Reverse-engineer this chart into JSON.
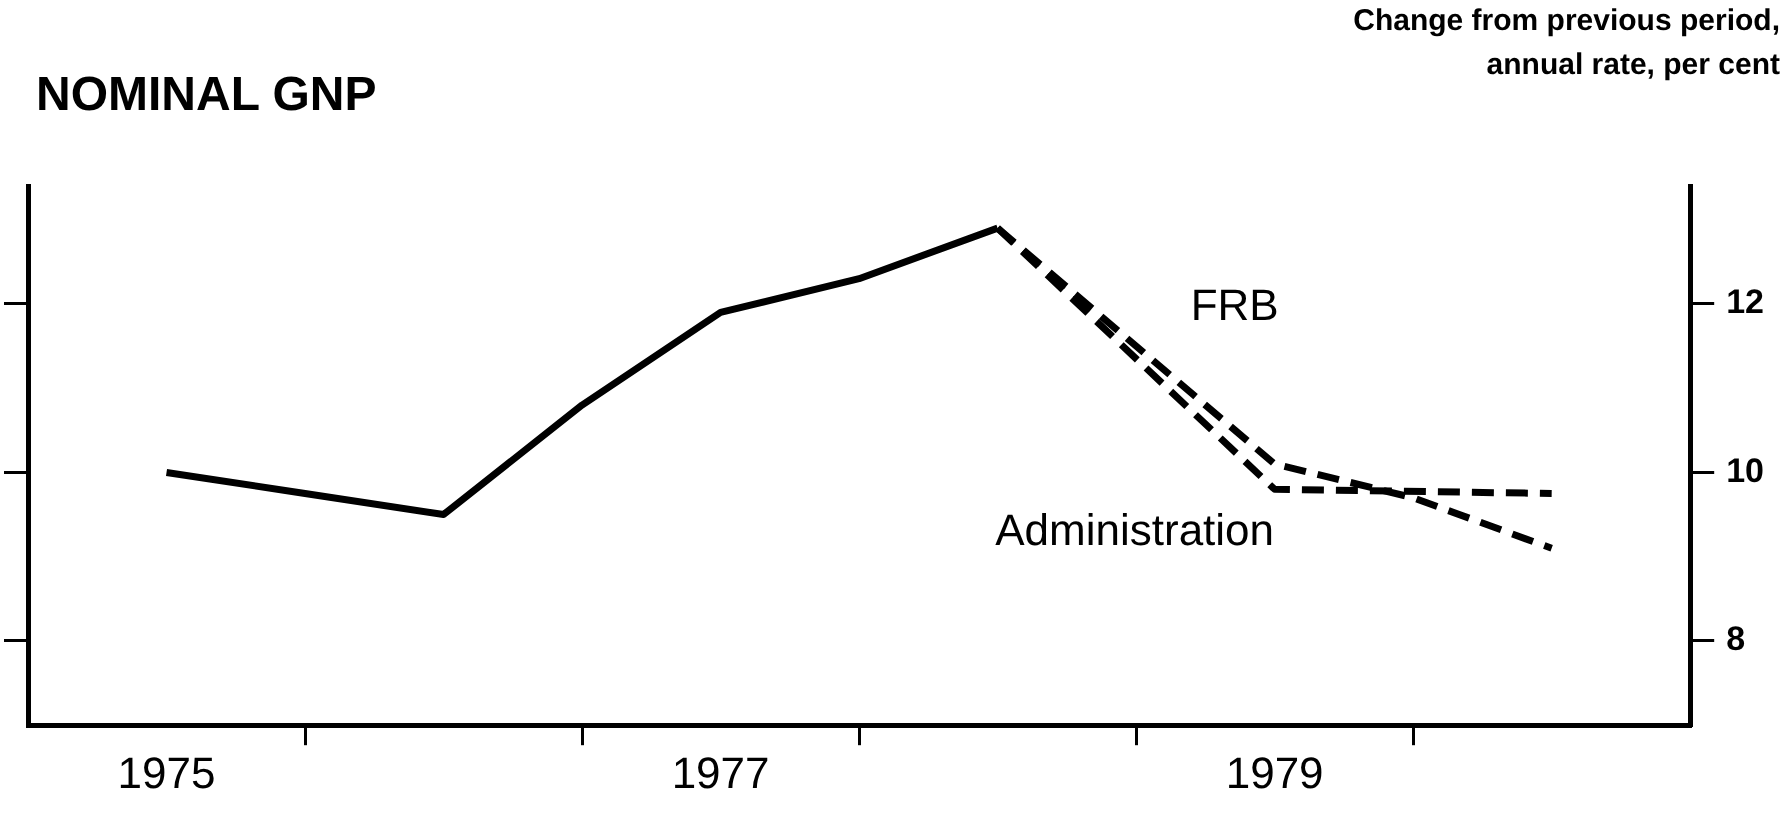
{
  "chart_data": {
    "type": "line",
    "title": "NOMINAL GNP",
    "ylabel": "Change from previous period, annual rate, per cent",
    "xlim": [
      1974.5,
      1980.5
    ],
    "xticks": [
      {
        "value": 1975,
        "label": "1975"
      },
      {
        "value": 1975.5,
        "label": null
      },
      {
        "value": 1976.5,
        "label": null
      },
      {
        "value": 1977,
        "label": "1977"
      },
      {
        "value": 1977.5,
        "label": null
      },
      {
        "value": 1978.5,
        "label": null
      },
      {
        "value": 1979,
        "label": "1979"
      },
      {
        "value": 1979.5,
        "label": null
      }
    ],
    "ylim": [
      7,
      13.4
    ],
    "yticks": [
      8,
      10,
      12
    ],
    "series": [
      {
        "color": "#000000",
        "line_style": "solid",
        "x": [
          1975,
          1975.5,
          1976,
          1976.5,
          1977,
          1977.5,
          1978
        ],
        "values": [
          10.0,
          9.75,
          9.5,
          10.8,
          11.9,
          12.3,
          12.9
        ]
      },
      {
        "name": "FRB",
        "color": "#000000",
        "line_style": "dashed",
        "x": [
          1978,
          1979,
          1979.5,
          1980
        ],
        "values": [
          12.9,
          10.1,
          9.7,
          9.1
        ]
      },
      {
        "name": "Administration",
        "color": "#000000",
        "line_style": "dashed",
        "x": [
          1978,
          1979,
          1980
        ],
        "values": [
          12.9,
          9.8,
          9.75
        ]
      }
    ]
  }
}
